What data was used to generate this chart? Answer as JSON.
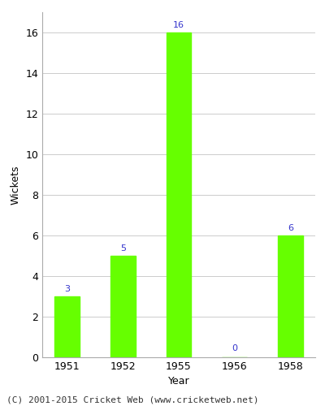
{
  "years": [
    "1951",
    "1952",
    "1955",
    "1956",
    "1958"
  ],
  "wickets": [
    3,
    5,
    16,
    0,
    6
  ],
  "bar_color": "#66ff00",
  "label_color": "#3333cc",
  "xlabel": "Year",
  "ylabel": "Wickets",
  "ylim": [
    0,
    17
  ],
  "yticks": [
    0,
    2,
    4,
    6,
    8,
    10,
    12,
    14,
    16
  ],
  "footer": "(C) 2001-2015 Cricket Web (www.cricketweb.net)",
  "label_fontsize": 8,
  "axis_fontsize": 9,
  "tick_fontsize": 9,
  "footer_fontsize": 8,
  "plot_background": "#ffffff",
  "bar_width": 0.45,
  "grid_color": "#cccccc",
  "spine_color": "#aaaaaa"
}
